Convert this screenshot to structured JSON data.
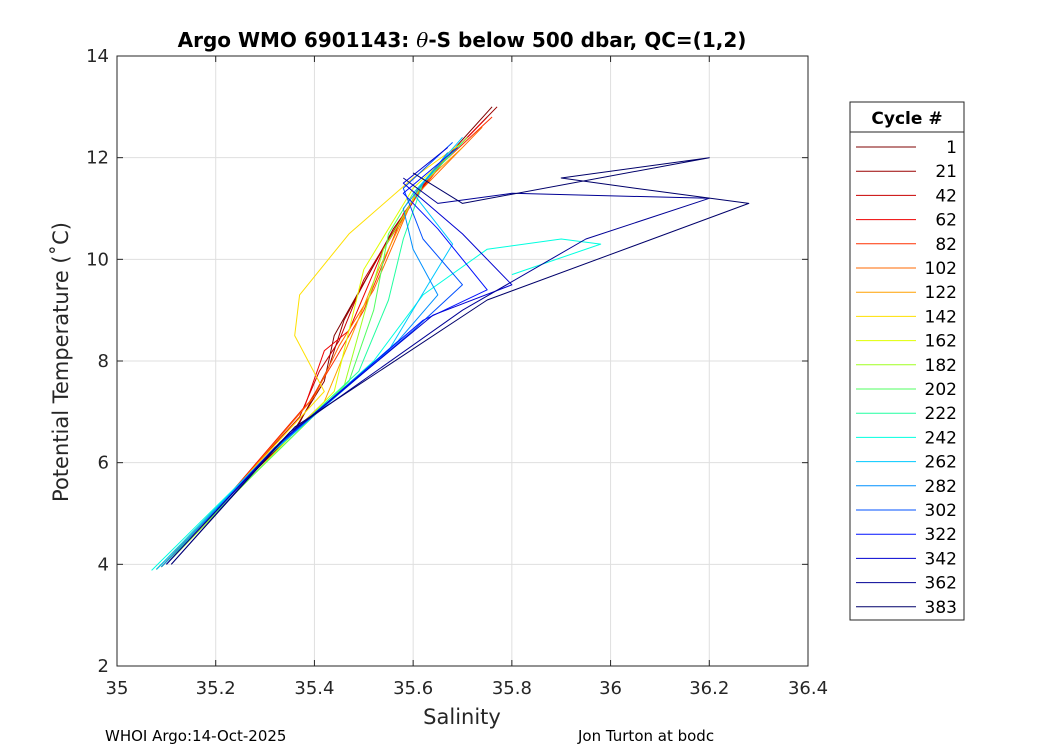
{
  "chart_data": {
    "type": "line",
    "title_prefix": "Argo WMO 6901143: ",
    "title_theta": "θ",
    "title_suffix": "-S below 500 dbar,  QC=(1,2)",
    "xlabel": "Salinity",
    "ylabel": "Potential Temperature (˚C)",
    "xlim": [
      35,
      36.4
    ],
    "ylim": [
      2,
      14
    ],
    "xticks": [
      35,
      35.2,
      35.4,
      35.6,
      35.8,
      36,
      36.2,
      36.4
    ],
    "xtick_labels": [
      "35",
      "35.2",
      "35.4",
      "35.6",
      "35.8",
      "36",
      "36.2",
      "36.4"
    ],
    "yticks": [
      2,
      4,
      6,
      8,
      10,
      12,
      14
    ],
    "ytick_labels": [
      "2",
      "4",
      "6",
      "8",
      "10",
      "12",
      "14"
    ],
    "grid": true,
    "legend_title": "Cycle #",
    "legend_position": "outside-right",
    "series": [
      {
        "name": "1",
        "color": "#7f0000",
        "points": [
          [
            35.08,
            3.9
          ],
          [
            35.2,
            5.1
          ],
          [
            35.35,
            6.5
          ],
          [
            35.42,
            7.6
          ],
          [
            35.44,
            8.5
          ],
          [
            35.55,
            10.4
          ],
          [
            35.63,
            11.6
          ],
          [
            35.76,
            13.0
          ]
        ]
      },
      {
        "name": "21",
        "color": "#9a0000",
        "points": [
          [
            35.09,
            3.95
          ],
          [
            35.21,
            5.2
          ],
          [
            35.36,
            6.6
          ],
          [
            35.43,
            7.9
          ],
          [
            35.46,
            8.8
          ],
          [
            35.56,
            10.6
          ],
          [
            35.64,
            11.7
          ],
          [
            35.77,
            13.0
          ]
        ]
      },
      {
        "name": "42",
        "color": "#c80000",
        "points": [
          [
            35.08,
            3.9
          ],
          [
            35.22,
            5.3
          ],
          [
            35.37,
            6.9
          ],
          [
            35.41,
            7.8
          ],
          [
            35.45,
            8.4
          ],
          [
            35.5,
            9.6
          ],
          [
            35.62,
            11.5
          ],
          [
            35.75,
            12.8
          ]
        ]
      },
      {
        "name": "62",
        "color": "#ee0000",
        "points": [
          [
            35.09,
            3.95
          ],
          [
            35.23,
            5.4
          ],
          [
            35.38,
            7.1
          ],
          [
            35.42,
            8.2
          ],
          [
            35.47,
            8.6
          ],
          [
            35.54,
            10.2
          ],
          [
            35.63,
            11.6
          ],
          [
            35.74,
            12.7
          ]
        ]
      },
      {
        "name": "82",
        "color": "#ff3000",
        "points": [
          [
            35.1,
            4.0
          ],
          [
            35.24,
            5.5
          ],
          [
            35.39,
            7.2
          ],
          [
            35.44,
            8.0
          ],
          [
            35.5,
            9.0
          ],
          [
            35.58,
            10.9
          ],
          [
            35.66,
            11.9
          ],
          [
            35.76,
            12.8
          ]
        ]
      },
      {
        "name": "102",
        "color": "#ff6800",
        "points": [
          [
            35.1,
            4.0
          ],
          [
            35.25,
            5.6
          ],
          [
            35.4,
            7.3
          ],
          [
            35.45,
            8.3
          ],
          [
            35.52,
            9.4
          ],
          [
            35.6,
            11.2
          ],
          [
            35.68,
            12.0
          ],
          [
            35.74,
            12.6
          ]
        ]
      },
      {
        "name": "122",
        "color": "#ffa000",
        "points": [
          [
            35.1,
            4.0
          ],
          [
            35.25,
            5.6
          ],
          [
            35.42,
            7.2
          ],
          [
            35.48,
            8.6
          ],
          [
            35.53,
            9.8
          ],
          [
            35.61,
            11.4
          ],
          [
            35.7,
            12.2
          ]
        ]
      },
      {
        "name": "142",
        "color": "#ffe000",
        "points": [
          [
            35.09,
            3.95
          ],
          [
            35.24,
            5.5
          ],
          [
            35.42,
            7.4
          ],
          [
            35.36,
            8.5
          ],
          [
            35.37,
            9.3
          ],
          [
            35.47,
            10.5
          ],
          [
            35.6,
            11.6
          ],
          [
            35.7,
            12.3
          ]
        ]
      },
      {
        "name": "162",
        "color": "#e0ff00",
        "points": [
          [
            35.1,
            4.0
          ],
          [
            35.26,
            5.6
          ],
          [
            35.44,
            7.4
          ],
          [
            35.47,
            8.6
          ],
          [
            35.5,
            9.8
          ],
          [
            35.6,
            11.4
          ],
          [
            35.7,
            12.3
          ]
        ]
      },
      {
        "name": "182",
        "color": "#a0ff20",
        "points": [
          [
            35.1,
            4.0
          ],
          [
            35.27,
            5.7
          ],
          [
            35.46,
            7.5
          ],
          [
            35.5,
            8.9
          ],
          [
            35.54,
            10.2
          ],
          [
            35.62,
            11.5
          ],
          [
            35.71,
            12.4
          ]
        ]
      },
      {
        "name": "202",
        "color": "#50ff60",
        "points": [
          [
            35.09,
            3.95
          ],
          [
            35.27,
            5.7
          ],
          [
            35.47,
            7.6
          ],
          [
            35.52,
            9.0
          ],
          [
            35.55,
            10.5
          ],
          [
            35.6,
            11.3
          ],
          [
            35.7,
            12.3
          ]
        ]
      },
      {
        "name": "222",
        "color": "#20ffa0",
        "points": [
          [
            35.08,
            3.9
          ],
          [
            35.27,
            5.8
          ],
          [
            35.49,
            7.8
          ],
          [
            35.55,
            9.2
          ],
          [
            35.58,
            10.4
          ],
          [
            35.62,
            11.5
          ],
          [
            35.7,
            12.3
          ]
        ]
      },
      {
        "name": "242",
        "color": "#00ffe0",
        "points": [
          [
            35.07,
            3.88
          ],
          [
            35.28,
            5.9
          ],
          [
            35.52,
            8.0
          ],
          [
            35.62,
            9.3
          ],
          [
            35.75,
            10.2
          ],
          [
            35.9,
            10.4
          ],
          [
            35.98,
            10.3
          ],
          [
            35.8,
            9.7
          ]
        ]
      },
      {
        "name": "262",
        "color": "#00c8ff",
        "points": [
          [
            35.08,
            3.9
          ],
          [
            35.29,
            6.0
          ],
          [
            35.55,
            8.2
          ],
          [
            35.63,
            9.5
          ],
          [
            35.68,
            10.3
          ],
          [
            35.6,
            11.3
          ],
          [
            35.7,
            12.4
          ]
        ]
      },
      {
        "name": "282",
        "color": "#0090ff",
        "points": [
          [
            35.09,
            3.95
          ],
          [
            35.3,
            6.1
          ],
          [
            35.57,
            8.4
          ],
          [
            35.65,
            9.3
          ],
          [
            35.6,
            10.2
          ],
          [
            35.58,
            11.0
          ],
          [
            35.67,
            12.1
          ]
        ]
      },
      {
        "name": "302",
        "color": "#0050ff",
        "points": [
          [
            35.1,
            4.0
          ],
          [
            35.31,
            6.2
          ],
          [
            35.6,
            8.6
          ],
          [
            35.7,
            9.5
          ],
          [
            35.62,
            10.4
          ],
          [
            35.58,
            11.4
          ],
          [
            35.68,
            12.3
          ]
        ]
      },
      {
        "name": "322",
        "color": "#0010ff",
        "points": [
          [
            35.1,
            4.0
          ],
          [
            35.32,
            6.3
          ],
          [
            35.62,
            8.8
          ],
          [
            35.75,
            9.4
          ],
          [
            35.65,
            10.6
          ],
          [
            35.58,
            11.3
          ],
          [
            35.69,
            12.2
          ]
        ]
      },
      {
        "name": "342",
        "color": "#0000d0",
        "points": [
          [
            35.11,
            4.0
          ],
          [
            35.33,
            6.4
          ],
          [
            35.64,
            8.9
          ],
          [
            35.8,
            9.5
          ],
          [
            35.7,
            10.5
          ],
          [
            35.58,
            11.5
          ],
          [
            35.67,
            12.2
          ]
        ]
      },
      {
        "name": "362",
        "color": "#000095",
        "points": [
          [
            35.1,
            4.0
          ],
          [
            35.35,
            6.6
          ],
          [
            35.7,
            9.0
          ],
          [
            35.95,
            10.4
          ],
          [
            36.2,
            11.2
          ],
          [
            35.8,
            11.3
          ],
          [
            35.65,
            11.1
          ],
          [
            35.58,
            11.6
          ]
        ]
      },
      {
        "name": "383",
        "color": "#00006a",
        "points": [
          [
            35.11,
            4.0
          ],
          [
            35.36,
            6.7
          ],
          [
            35.75,
            9.2
          ],
          [
            36.28,
            11.1
          ],
          [
            36.05,
            11.4
          ],
          [
            35.9,
            11.6
          ],
          [
            36.2,
            12.0
          ],
          [
            35.7,
            11.1
          ],
          [
            35.6,
            11.7
          ]
        ]
      }
    ]
  },
  "footer": {
    "left": "WHOI Argo:14-Oct-2025",
    "right": "Jon Turton at bodc"
  }
}
